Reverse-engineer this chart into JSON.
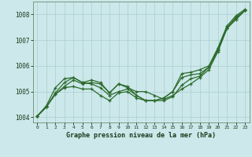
{
  "background_color": "#cce8ea",
  "grid_color": "#aacdd0",
  "line_color": "#2d6b2d",
  "title": "Graphe pression niveau de la mer (hPa)",
  "xlim": [
    -0.5,
    23.5
  ],
  "ylim": [
    1003.8,
    1008.5
  ],
  "yticks": [
    1004,
    1005,
    1006,
    1007,
    1008
  ],
  "xticks": [
    0,
    1,
    2,
    3,
    4,
    5,
    6,
    7,
    8,
    9,
    10,
    11,
    12,
    13,
    14,
    15,
    16,
    17,
    18,
    19,
    20,
    21,
    22,
    23
  ],
  "series1_x": [
    0,
    1,
    2,
    3,
    4,
    5,
    6,
    7,
    8,
    9,
    10,
    11,
    12,
    13,
    14,
    15,
    16,
    17,
    18,
    19,
    20,
    21,
    22,
    23
  ],
  "series1_y": [
    1004.05,
    1004.4,
    1004.9,
    1005.15,
    1005.2,
    1005.1,
    1005.1,
    1004.85,
    1004.65,
    1004.95,
    1005.0,
    1004.75,
    1004.65,
    1004.65,
    1004.65,
    1004.8,
    1005.25,
    1005.5,
    1005.6,
    1005.95,
    1006.6,
    1007.45,
    1007.8,
    1008.15
  ],
  "series2_x": [
    0,
    1,
    2,
    3,
    4,
    5,
    6,
    7,
    8,
    9,
    10,
    11,
    12,
    13,
    14,
    15,
    16,
    17,
    18,
    19,
    20,
    21,
    22,
    23
  ],
  "series2_y": [
    1004.05,
    1004.4,
    1004.9,
    1005.2,
    1005.45,
    1005.3,
    1005.35,
    1005.3,
    1004.95,
    1005.3,
    1005.15,
    1005.0,
    1005.0,
    1004.85,
    1004.7,
    1004.85,
    1005.1,
    1005.3,
    1005.55,
    1005.85,
    1006.55,
    1007.45,
    1007.9,
    1008.15
  ],
  "series3_x": [
    0,
    1,
    2,
    3,
    4,
    5,
    6,
    7,
    8,
    9,
    10,
    11,
    12,
    13,
    14,
    15,
    16,
    17,
    18,
    19,
    20,
    21,
    22,
    23
  ],
  "series3_y": [
    1004.05,
    1004.4,
    1004.95,
    1005.35,
    1005.55,
    1005.35,
    1005.45,
    1005.35,
    1004.95,
    1005.3,
    1005.2,
    1004.85,
    1004.65,
    1004.65,
    1004.75,
    1005.0,
    1005.55,
    1005.65,
    1005.7,
    1005.95,
    1006.65,
    1007.5,
    1007.85,
    1008.15
  ],
  "series4_x": [
    0,
    1,
    2,
    3,
    4,
    5,
    6,
    7,
    8,
    9,
    10,
    11,
    12,
    13,
    14,
    15,
    16,
    17,
    18,
    19,
    20,
    21,
    22,
    23
  ],
  "series4_y": [
    1004.05,
    1004.45,
    1005.15,
    1005.5,
    1005.55,
    1005.35,
    1005.3,
    1005.15,
    1004.85,
    1005.0,
    1005.1,
    1004.85,
    1004.65,
    1004.65,
    1004.75,
    1005.0,
    1005.7,
    1005.75,
    1005.85,
    1006.0,
    1006.7,
    1007.55,
    1007.95,
    1008.2
  ]
}
